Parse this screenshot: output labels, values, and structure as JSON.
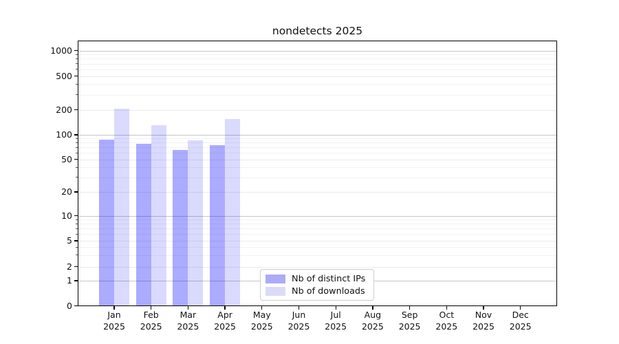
{
  "chart_data": {
    "type": "bar",
    "title": "nondetects 2025",
    "scale": "symlog",
    "grid": true,
    "categories": [
      "Jan",
      "Feb",
      "Mar",
      "Apr",
      "May",
      "Jun",
      "Jul",
      "Aug",
      "Sep",
      "Oct",
      "Nov",
      "Dec"
    ],
    "category_year": "2025",
    "series": [
      {
        "name": "Nb of distinct IPs",
        "color": "#ababf8",
        "fill": "rgba(0,0,255,0.33)",
        "values": [
          88,
          77,
          65,
          74,
          0,
          0,
          0,
          0,
          0,
          0,
          0,
          0
        ]
      },
      {
        "name": "Nb of downloads",
        "color": "#dbdbf8",
        "fill": "rgba(0,0,255,0.145)",
        "values": [
          207,
          131,
          86,
          156,
          0,
          0,
          0,
          0,
          0,
          0,
          0,
          0
        ]
      }
    ],
    "y_ticks": [
      0,
      1,
      2,
      5,
      10,
      20,
      50,
      100,
      200,
      500,
      1000
    ],
    "y_minor_ticks": [
      3,
      4,
      6,
      7,
      8,
      9,
      30,
      40,
      60,
      70,
      80,
      90,
      300,
      400,
      600,
      700,
      800,
      900
    ],
    "ylim": [
      0,
      1300
    ],
    "legend_position": "lower center",
    "colors": {
      "grid_major_power10": "#c6c6c6",
      "grid_labeled": "#ebebeb",
      "grid_minor": "#f2f2f2",
      "axis": "#000000",
      "background": "#ffffff"
    }
  }
}
